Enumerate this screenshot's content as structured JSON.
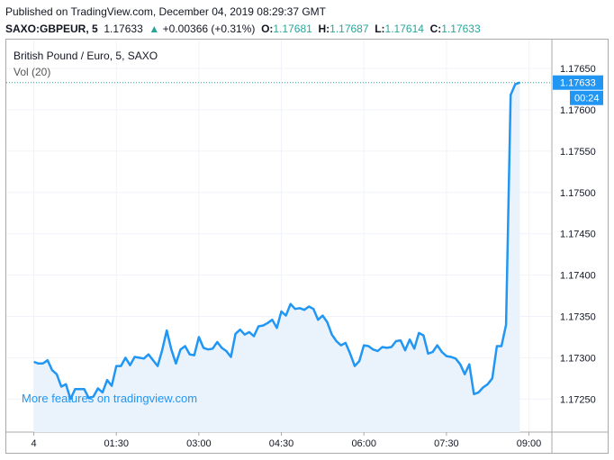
{
  "header": {
    "published": "Published on TradingView.com, December 04, 2019 08:29:37 GMT",
    "symbol": "SAXO:GBPEUR, 5",
    "last": "1.17633",
    "change_arrow": "▲",
    "change": "+0.00366 (+0.31%)",
    "o_label": "O:",
    "o_value": "1.17681",
    "h_label": "H:",
    "h_value": "1.17687",
    "l_label": "L:",
    "l_value": "1.17614",
    "c_label": "C:",
    "c_value": "1.17633"
  },
  "legend": {
    "title": "British Pound / Euro, 5, SAXO",
    "volume": "Vol (20)"
  },
  "watermark": "More features on tradingview.com",
  "price_badge": {
    "price": "1.17633",
    "countdown": "00:24"
  },
  "colors": {
    "line": "#2196f3",
    "area": "#eaf3fc",
    "badge": "#2196f3",
    "up": "#26a69a"
  },
  "chart_data": {
    "type": "area",
    "title": "British Pound / Euro, 5, SAXO",
    "xlabel": "",
    "ylabel": "",
    "x_start": "00:00",
    "x_interval_minutes": 5,
    "x_ticks": [
      {
        "label": "4",
        "minutes": 0
      },
      {
        "label": "01:30",
        "minutes": 90
      },
      {
        "label": "03:00",
        "minutes": 180
      },
      {
        "label": "04:30",
        "minutes": 270
      },
      {
        "label": "06:00",
        "minutes": 360
      },
      {
        "label": "07:30",
        "minutes": 450
      },
      {
        "label": "09:00",
        "minutes": 540
      }
    ],
    "y_ticks": [
      "1.17650",
      "1.17600",
      "1.17550",
      "1.17500",
      "1.17450",
      "1.17400",
      "1.17350",
      "1.17300",
      "1.17250"
    ],
    "ylim": [
      1.1721,
      1.17685
    ],
    "xlim_minutes": [
      -30,
      565
    ],
    "last_value": 1.17633,
    "grid": true,
    "series": [
      {
        "name": "",
        "values": [
          1.17295,
          1.17293,
          1.17293,
          1.17297,
          1.17285,
          1.1728,
          1.17265,
          1.17268,
          1.1725,
          1.17262,
          1.17262,
          1.17262,
          1.17251,
          1.17253,
          1.17263,
          1.17258,
          1.17273,
          1.17266,
          1.1729,
          1.1729,
          1.173,
          1.17291,
          1.17301,
          1.173,
          1.17299,
          1.17304,
          1.17297,
          1.1729,
          1.17309,
          1.17333,
          1.1731,
          1.17293,
          1.1731,
          1.17314,
          1.17304,
          1.17303,
          1.17325,
          1.17312,
          1.1731,
          1.17311,
          1.17319,
          1.17312,
          1.17308,
          1.17301,
          1.17329,
          1.17334,
          1.17328,
          1.17331,
          1.17326,
          1.17338,
          1.17339,
          1.17342,
          1.17346,
          1.17336,
          1.17356,
          1.17351,
          1.17365,
          1.17359,
          1.1736,
          1.17358,
          1.17362,
          1.17359,
          1.17346,
          1.17351,
          1.17343,
          1.17328,
          1.1732,
          1.17315,
          1.17318,
          1.17305,
          1.1729,
          1.17296,
          1.17315,
          1.17314,
          1.1731,
          1.17308,
          1.17313,
          1.17312,
          1.17313,
          1.1732,
          1.17321,
          1.17309,
          1.17322,
          1.17311,
          1.1733,
          1.17327,
          1.17305,
          1.17307,
          1.17315,
          1.17307,
          1.17302,
          1.17301,
          1.17299,
          1.17292,
          1.1728,
          1.17292,
          1.17256,
          1.17258,
          1.17264,
          1.17268,
          1.17275,
          1.17314,
          1.17314,
          1.1734,
          1.17618,
          1.17631,
          1.17633
        ]
      }
    ]
  }
}
